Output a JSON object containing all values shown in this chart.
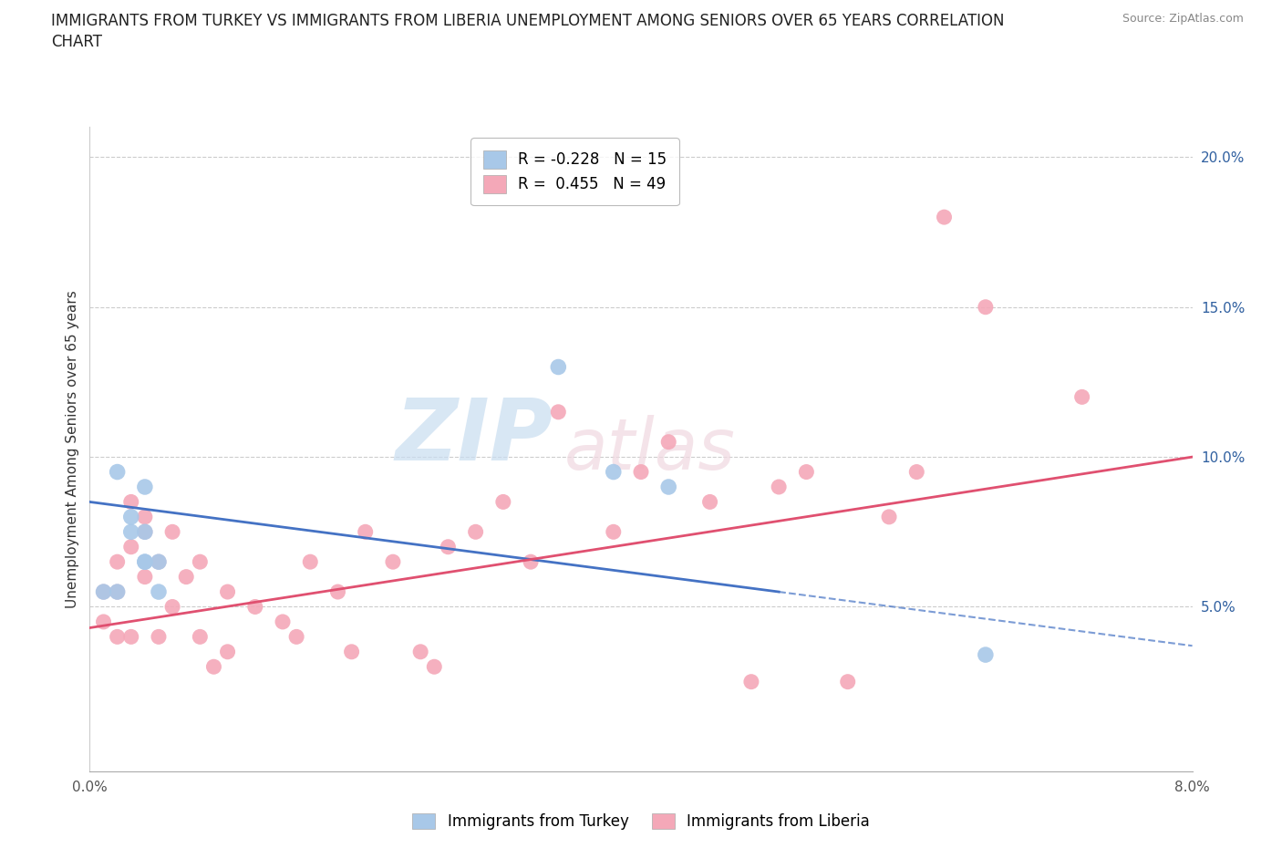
{
  "title_line1": "IMMIGRANTS FROM TURKEY VS IMMIGRANTS FROM LIBERIA UNEMPLOYMENT AMONG SENIORS OVER 65 YEARS CORRELATION",
  "title_line2": "CHART",
  "source": "Source: ZipAtlas.com",
  "ylabel": "Unemployment Among Seniors over 65 years",
  "xlim": [
    0.0,
    0.08
  ],
  "ylim": [
    -0.005,
    0.21
  ],
  "yticks": [
    0.05,
    0.1,
    0.15,
    0.2
  ],
  "ytick_labels": [
    "5.0%",
    "10.0%",
    "15.0%",
    "20.0%"
  ],
  "xticks": [
    0.0,
    0.01,
    0.02,
    0.03,
    0.04,
    0.05,
    0.06,
    0.07,
    0.08
  ],
  "xtick_labels": [
    "0.0%",
    "",
    "",
    "",
    "",
    "",
    "",
    "",
    "8.0%"
  ],
  "turkey_R": -0.228,
  "turkey_N": 15,
  "liberia_R": 0.455,
  "liberia_N": 49,
  "turkey_color": "#a8c8e8",
  "liberia_color": "#f4a8b8",
  "turkey_line_color": "#4472c4",
  "liberia_line_color": "#e05070",
  "watermark_zip": "ZIP",
  "watermark_atlas": "atlas",
  "turkey_line_solid_end": 0.05,
  "turkey_intercept": 0.085,
  "turkey_slope": -0.5,
  "liberia_intercept": 0.043,
  "liberia_slope": 0.72,
  "turkey_x": [
    0.001,
    0.002,
    0.002,
    0.003,
    0.003,
    0.004,
    0.004,
    0.004,
    0.004,
    0.005,
    0.005,
    0.034,
    0.038,
    0.042,
    0.065
  ],
  "turkey_y": [
    0.055,
    0.055,
    0.095,
    0.075,
    0.08,
    0.075,
    0.065,
    0.09,
    0.065,
    0.065,
    0.055,
    0.13,
    0.095,
    0.09,
    0.034
  ],
  "liberia_x": [
    0.001,
    0.001,
    0.002,
    0.002,
    0.002,
    0.003,
    0.003,
    0.003,
    0.004,
    0.004,
    0.004,
    0.005,
    0.005,
    0.006,
    0.006,
    0.007,
    0.008,
    0.008,
    0.009,
    0.01,
    0.01,
    0.012,
    0.014,
    0.015,
    0.016,
    0.018,
    0.019,
    0.02,
    0.022,
    0.024,
    0.025,
    0.026,
    0.028,
    0.03,
    0.032,
    0.034,
    0.038,
    0.04,
    0.042,
    0.045,
    0.048,
    0.05,
    0.052,
    0.055,
    0.058,
    0.06,
    0.062,
    0.065,
    0.072
  ],
  "liberia_y": [
    0.045,
    0.055,
    0.055,
    0.065,
    0.04,
    0.07,
    0.085,
    0.04,
    0.08,
    0.075,
    0.06,
    0.065,
    0.04,
    0.075,
    0.05,
    0.06,
    0.04,
    0.065,
    0.03,
    0.055,
    0.035,
    0.05,
    0.045,
    0.04,
    0.065,
    0.055,
    0.035,
    0.075,
    0.065,
    0.035,
    0.03,
    0.07,
    0.075,
    0.085,
    0.065,
    0.115,
    0.075,
    0.095,
    0.105,
    0.085,
    0.025,
    0.09,
    0.095,
    0.025,
    0.08,
    0.095,
    0.18,
    0.15,
    0.12
  ]
}
